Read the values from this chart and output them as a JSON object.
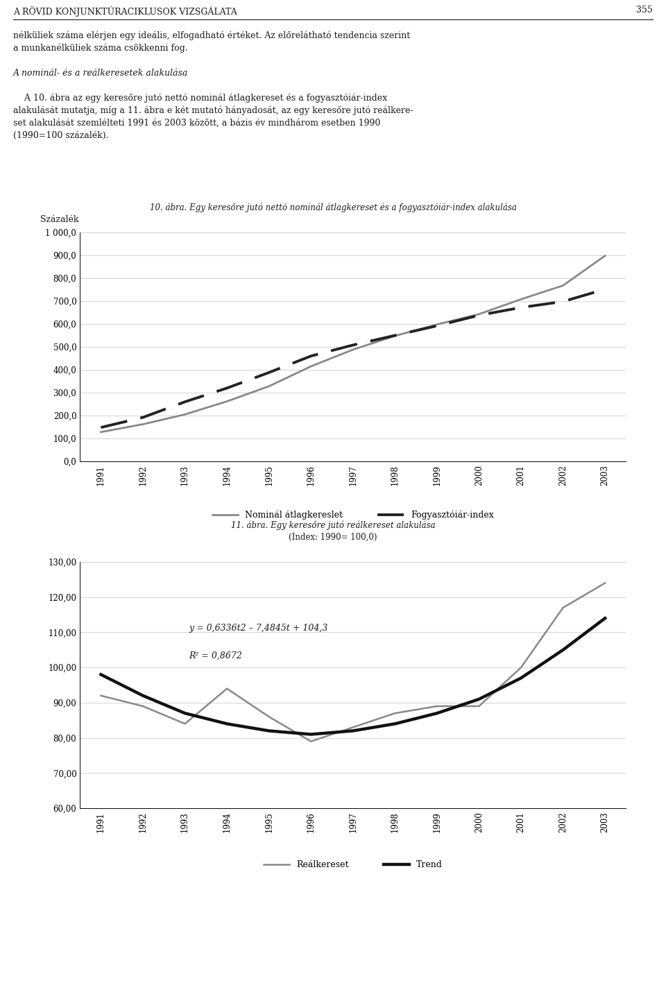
{
  "page_header": "A RÖVID KONJUNKTÚRACIKLUSOK VIZSGÁLATA",
  "page_number": "355",
  "body_line1": "nélküliek száma elérjen egy ideális, elfogadható értéket. Az előrelátható tendencia szerint",
  "body_line2": "a munkanélküliek száma csökkenni fog.",
  "section_title": "A nominál- és a reálkeresetek alakulása",
  "body_line3": "    A 10. ábra az egy keresőre jutó nettó nominál átlagkereset és a fogyasztóiár-index",
  "body_line4": "alakulását mutatja, míg a 11. ábra e két mutató hányadosát, az egy keresőre jutó reálkere-",
  "body_line5": "set alakulását szemlélteti 1991 és 2003 között, a bázis év mindhárom esetben 1990",
  "body_line6": "(1990=100 százalék).",
  "chart1_title": "10. ábra. Egy keresőre jutó nettó nominál átlagkereset és a fogyasztóiár-index alakulása",
  "chart1_ylabel": "Százalék",
  "chart1_ylim": [
    0,
    1000
  ],
  "chart1_yticks": [
    0.0,
    100.0,
    200.0,
    300.0,
    400.0,
    500.0,
    600.0,
    700.0,
    800.0,
    900.0,
    1000.0
  ],
  "chart1_ytick_labels": [
    "0,0",
    "100,0",
    "200,0",
    "300,0",
    "400,0",
    "500,0",
    "600,0",
    "700,0",
    "800,0",
    "900,0",
    "1 000,0"
  ],
  "chart1_years": [
    1991,
    1992,
    1993,
    1994,
    1995,
    1996,
    1997,
    1998,
    1999,
    2000,
    2001,
    2002,
    2003
  ],
  "chart1_nominal": [
    128,
    162,
    205,
    262,
    328,
    415,
    488,
    548,
    598,
    643,
    708,
    768,
    898
  ],
  "chart1_cpi": [
    148,
    192,
    260,
    320,
    388,
    460,
    508,
    550,
    592,
    638,
    672,
    698,
    752
  ],
  "chart1_nominal_color": "#888888",
  "chart1_cpi_color": "#222222",
  "chart1_nominal_label": "Nominál átlagkereslet",
  "chart1_cpi_label": "Fogyasztóiár-index",
  "chart2_title_line1": "11. ábra. Egy keresőre jutó reálkereset alakulása",
  "chart2_title_line2": "(Index: 1990= 100,0)",
  "chart2_ylim": [
    60,
    130
  ],
  "chart2_yticks": [
    60.0,
    70.0,
    80.0,
    90.0,
    100.0,
    110.0,
    120.0,
    130.0
  ],
  "chart2_ytick_labels": [
    "60,00",
    "70,00",
    "80,00",
    "90,00",
    "100,00",
    "110,00",
    "120,00",
    "130,00"
  ],
  "chart2_years": [
    1991,
    1992,
    1993,
    1994,
    1995,
    1996,
    1997,
    1998,
    1999,
    2000,
    2001,
    2002,
    2003
  ],
  "chart2_realwage": [
    92,
    89,
    84,
    94,
    86,
    79,
    83,
    87,
    89,
    89,
    100,
    117,
    124
  ],
  "chart2_trend": [
    98,
    92,
    87,
    84,
    82,
    81,
    82,
    84,
    87,
    91,
    97,
    105,
    114
  ],
  "chart2_realwage_color": "#888888",
  "chart2_trend_color": "#111111",
  "chart2_realwage_label": "Reálkereset",
  "chart2_trend_label": "Trend",
  "chart2_equation": "y = 0,6336t2 – 7,4845t + 104,3",
  "chart2_r2": "R² = 0,8672",
  "background_color": "#ffffff",
  "text_color": "#1a1a1a",
  "grid_color": "#cccccc"
}
